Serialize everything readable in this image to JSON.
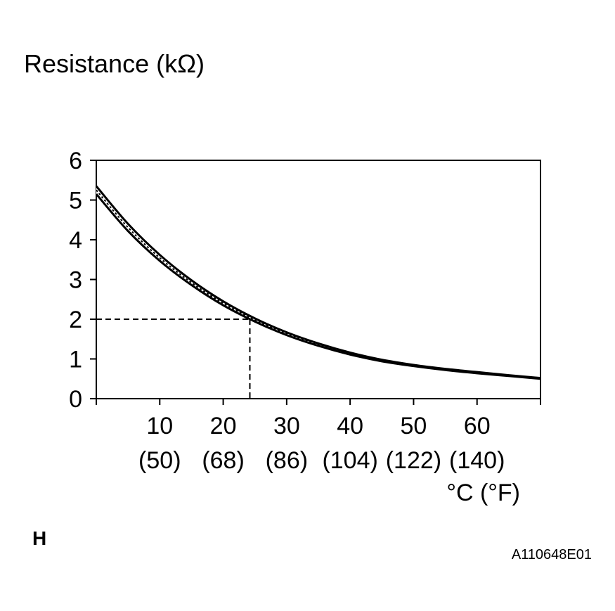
{
  "chart_data": {
    "type": "line",
    "title": "",
    "ylabel": "Resistance (kΩ)",
    "xlabel": "°C (°F)",
    "xlim": [
      0,
      70
    ],
    "ylim": [
      0,
      6
    ],
    "grid": false,
    "y_ticks": [
      {
        "value": 6,
        "label": "6"
      },
      {
        "value": 5,
        "label": "5"
      },
      {
        "value": 4,
        "label": "4"
      },
      {
        "value": 3,
        "label": "3"
      },
      {
        "value": 2,
        "label": "2"
      },
      {
        "value": 1,
        "label": "1"
      },
      {
        "value": 0,
        "label": "0"
      }
    ],
    "x_ticks": [
      {
        "value": 10,
        "label": "10",
        "sublabel": "(50)"
      },
      {
        "value": 20,
        "label": "20",
        "sublabel": "(68)"
      },
      {
        "value": 30,
        "label": "30",
        "sublabel": "(86)"
      },
      {
        "value": 40,
        "label": "40",
        "sublabel": "(104)"
      },
      {
        "value": 50,
        "label": "50",
        "sublabel": "(122)"
      },
      {
        "value": 60,
        "label": "60",
        "sublabel": "(140)"
      }
    ],
    "series": [
      {
        "style": "upper-bound",
        "x": [
          0,
          5,
          10,
          15,
          20,
          25,
          30,
          35,
          40,
          45,
          50,
          55,
          60,
          65,
          70
        ],
        "y": [
          5.35,
          4.4,
          3.62,
          2.98,
          2.45,
          2.02,
          1.67,
          1.39,
          1.16,
          0.98,
          0.85,
          0.75,
          0.67,
          0.59,
          0.52
        ]
      },
      {
        "style": "lower-bound",
        "x": [
          0,
          5,
          10,
          15,
          20,
          25,
          30,
          35,
          40,
          45,
          50,
          55,
          60,
          65,
          70
        ],
        "y": [
          5.15,
          4.22,
          3.47,
          2.86,
          2.35,
          1.94,
          1.6,
          1.33,
          1.11,
          0.94,
          0.82,
          0.72,
          0.64,
          0.57,
          0.5
        ]
      }
    ],
    "reference": {
      "x": 24.2,
      "y": 2
    }
  },
  "corner_label": "H",
  "figure_code": "A110648E01"
}
